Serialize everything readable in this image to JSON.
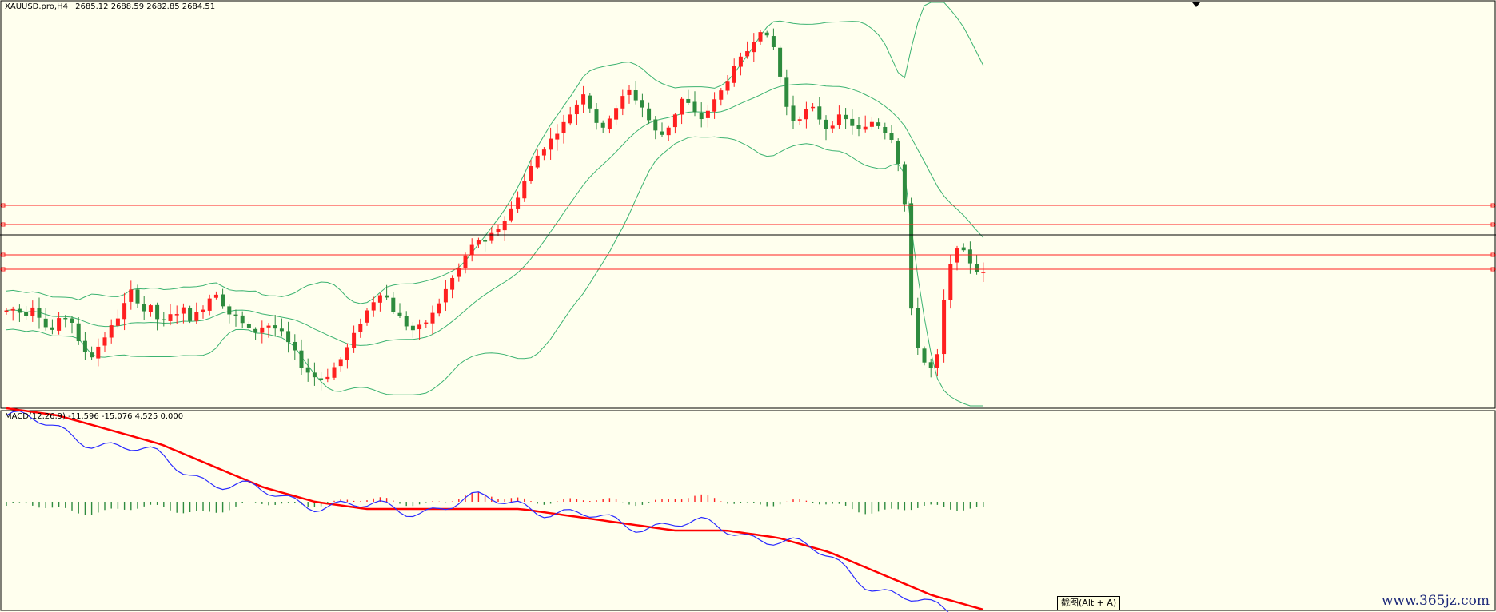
{
  "header": {
    "symbol_timeframe": "XAUUSD.pro,H4",
    "ohlc": "2685.12 2688.59 2682.85 2684.51"
  },
  "macd_panel": {
    "label": "MACD(12,26,9) -11.596 -15.076 4.525 0.000"
  },
  "tooltip": {
    "text": "截图(Alt + A)"
  },
  "watermark": {
    "text": "www.365jz.com"
  },
  "colors": {
    "background": "#ffffee",
    "bull_candle": "#ff2020",
    "bear_candle": "#2e8b3e",
    "bollinger": "#3cb371",
    "horizontal_lines": "#ff2020",
    "current_price_line": "#000000",
    "macd_line": "#2a2aff",
    "signal_line": "#ff0000"
  },
  "chart_data": [
    {
      "type": "candlestick",
      "title": "XAUUSD.pro,H4",
      "indicators": [
        "Bollinger Bands"
      ],
      "horizontal_lines_price_ordered_high_to_low": 4,
      "current_price": 2684.51,
      "candles_shape": [
        170,
        171,
        169,
        168,
        173,
        167,
        160,
        158,
        164,
        166,
        163,
        150,
        145,
        142,
        148,
        154,
        160,
        166,
        174,
        182,
        176,
        170,
        172,
        165,
        163,
        167,
        169,
        171,
        165,
        168,
        172,
        178,
        181,
        174,
        168,
        166,
        162,
        158,
        157,
        160,
        161,
        159,
        156,
        150,
        144,
        136,
        132,
        129,
        128,
        130,
        135,
        140,
        147,
        155,
        163,
        170,
        176,
        181,
        178,
        170,
        166,
        161,
        158,
        160,
        163,
        168,
        175,
        183,
        190,
        196,
        204,
        210,
        214,
        212,
        217,
        221,
        226,
        233,
        241,
        250,
        259,
        266,
        271,
        276,
        281,
        286,
        292,
        298,
        305,
        296,
        287,
        282,
        290,
        296,
        302,
        306,
        301,
        296,
        288,
        281,
        279,
        284,
        292,
        301,
        298,
        292,
        289,
        294,
        300,
        306,
        313,
        320,
        326,
        331,
        338,
        344,
        339,
        333,
        315,
        296,
        288,
        290,
        294,
        295,
        289,
        283,
        286,
        290,
        288,
        285,
        282,
        283,
        287,
        285,
        281,
        277,
        262,
        236,
        170,
        148,
        138,
        134,
        142,
        176,
        198,
        210,
        206,
        200,
        195,
        193
      ],
      "macd_line_shape": [
        12,
        10,
        8,
        6,
        3,
        1,
        0,
        -1,
        -1,
        0,
        0,
        -2,
        -3,
        -3,
        -4,
        -5,
        -8,
        -12,
        -15,
        -16
      ],
      "signal_line_shape": [
        13,
        12,
        10,
        8,
        5,
        2,
        0,
        -1,
        -1,
        -1,
        -1,
        -2,
        -3,
        -4,
        -4,
        -5,
        -7,
        -10,
        -13,
        -15
      ]
    }
  ]
}
